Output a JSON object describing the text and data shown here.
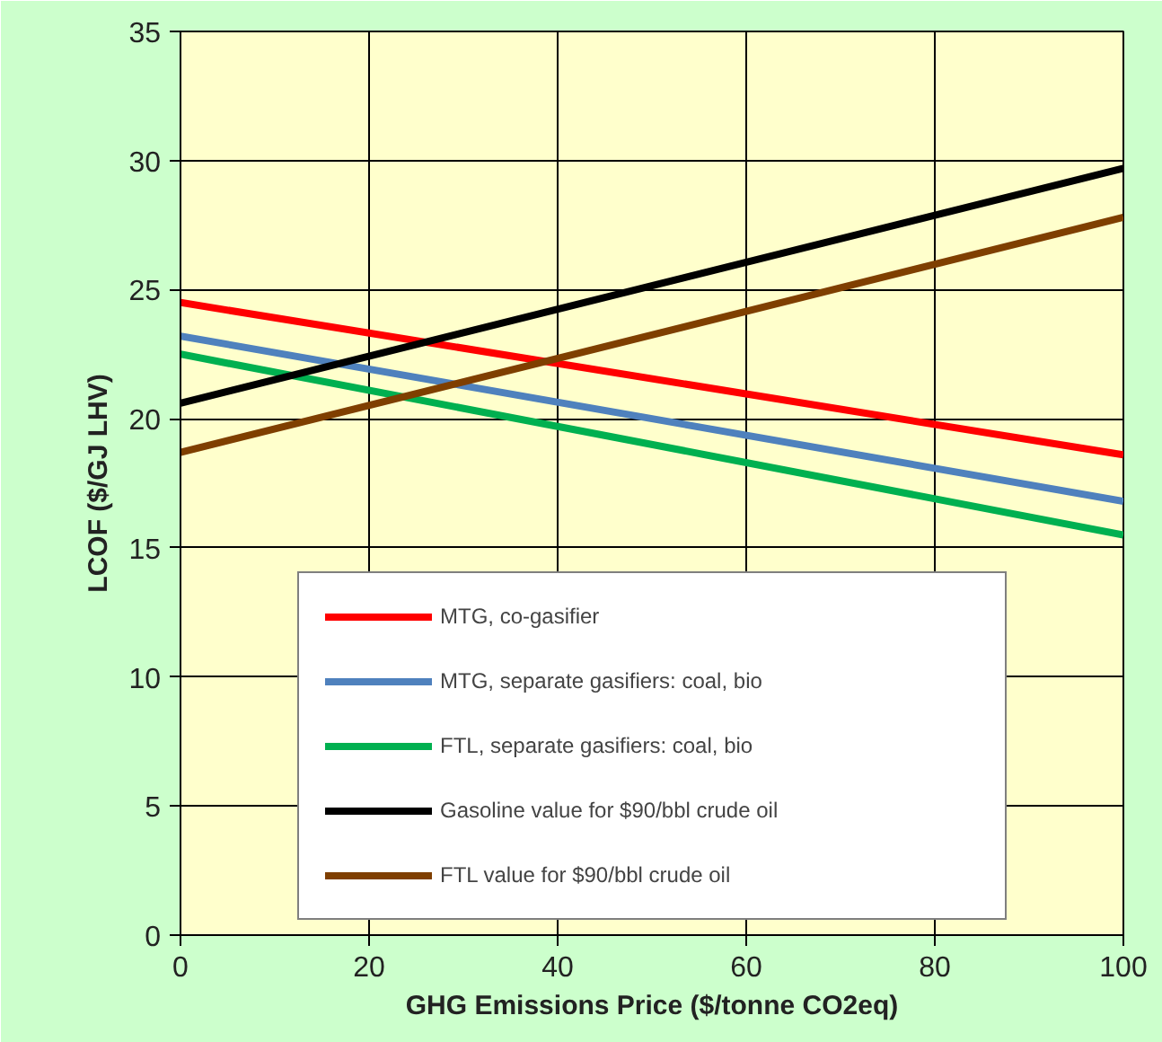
{
  "chart_data": {
    "type": "line",
    "xlabel": "GHG Emissions Price ($/tonne CO2eq)",
    "ylabel": "LCOF ($/GJ LHV)",
    "x": [
      0,
      100
    ],
    "xlim": [
      0,
      100
    ],
    "ylim": [
      0,
      35
    ],
    "xticks": [
      0,
      20,
      40,
      60,
      80,
      100
    ],
    "yticks": [
      0,
      5,
      10,
      15,
      20,
      25,
      30,
      35
    ],
    "grid": true,
    "legend": "bottom",
    "marker": "none",
    "line_style": "solid",
    "series": [
      {
        "name": "MTG, co-gasifier",
        "color": "#ff0000",
        "values": [
          24.5,
          18.6
        ]
      },
      {
        "name": "MTG, separate gasifiers: coal, bio",
        "color": "#4f81bd",
        "values": [
          23.2,
          16.8
        ]
      },
      {
        "name": "FTL, separate gasifiers: coal, bio",
        "color": "#00b050",
        "values": [
          22.5,
          15.5
        ]
      },
      {
        "name": "Gasoline value for $90/bbl crude oil",
        "color": "#000000",
        "values": [
          20.6,
          29.7
        ]
      },
      {
        "name": "FTL value for $90/bbl crude oil",
        "color": "#7f3f00",
        "values": [
          18.7,
          27.8
        ]
      }
    ]
  }
}
